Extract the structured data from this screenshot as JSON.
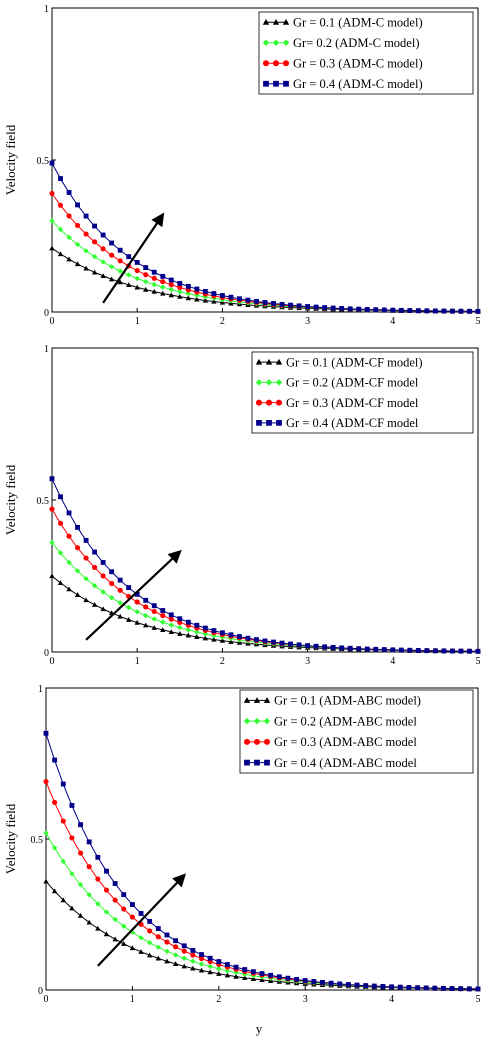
{
  "chart_data": [
    {
      "type": "line",
      "ylabel": "Velocity field",
      "xlim": [
        0,
        5
      ],
      "ylim": [
        0,
        1
      ],
      "xticks": [
        "0",
        "1",
        "2",
        "3",
        "4",
        "5"
      ],
      "yticks": [
        "0",
        "0.5",
        "1"
      ],
      "legend_position": "top-right",
      "arrow": {
        "from": [
          0.6,
          0.03
        ],
        "to": [
          1.3,
          0.32
        ]
      },
      "series": [
        {
          "name": "Gr = 0.1  (ADM-C model)",
          "color": "#000000",
          "marker": "triangle",
          "y0": 0.21,
          "decay": 0.95
        },
        {
          "name": "Gr= 0.2  (ADM-C model)",
          "color": "#33ff33",
          "marker": "diamond",
          "y0": 0.3,
          "decay": 1.0
        },
        {
          "name": "Gr = 0.3  (ADM-C model)",
          "color": "#ff0000",
          "marker": "circle",
          "y0": 0.39,
          "decay": 1.05
        },
        {
          "name": "Gr = 0.4  (ADM-C model)",
          "color": "#00008b",
          "marker": "square",
          "y0": 0.49,
          "decay": 1.1
        }
      ]
    },
    {
      "type": "line",
      "ylabel": "Velocity field",
      "xlim": [
        0,
        5
      ],
      "ylim": [
        0,
        1
      ],
      "xticks": [
        "0",
        "1",
        "2",
        "3",
        "4",
        "5"
      ],
      "yticks": [
        "0",
        "0.5",
        "1"
      ],
      "legend_position": "top-right",
      "arrow": {
        "from": [
          0.4,
          0.04
        ],
        "to": [
          1.5,
          0.33
        ]
      },
      "series": [
        {
          "name": "Gr = 0.1  (ADM-CF model)",
          "color": "#000000",
          "marker": "triangle",
          "y0": 0.25,
          "decay": 0.95
        },
        {
          "name": "Gr = 0.2  (ADM-CF model",
          "color": "#33ff33",
          "marker": "diamond",
          "y0": 0.36,
          "decay": 1.0
        },
        {
          "name": "Gr = 0.3  (ADM-CF model",
          "color": "#ff0000",
          "marker": "circle",
          "y0": 0.47,
          "decay": 1.05
        },
        {
          "name": "Gr = 0.4  (ADM-CF model",
          "color": "#00008b",
          "marker": "square",
          "y0": 0.57,
          "decay": 1.1
        }
      ]
    },
    {
      "type": "line",
      "ylabel": "Velocity field",
      "xlabel": "y",
      "xlim": [
        0,
        5
      ],
      "ylim": [
        0,
        1
      ],
      "xticks": [
        "0",
        "1",
        "2",
        "3",
        "4",
        "5"
      ],
      "yticks": [
        "0",
        "0.5",
        "1"
      ],
      "legend_position": "top-right",
      "arrow": {
        "from": [
          0.6,
          0.08
        ],
        "to": [
          1.6,
          0.38
        ]
      },
      "series": [
        {
          "name": "Gr = 0.1 (ADM-ABC model)",
          "color": "#000000",
          "marker": "triangle",
          "y0": 0.36,
          "decay": 0.95
        },
        {
          "name": "Gr = 0.2 (ADM-ABC model",
          "color": "#33ff33",
          "marker": "diamond",
          "y0": 0.52,
          "decay": 1.0
        },
        {
          "name": "Gr = 0.3 (ADM-ABC model",
          "color": "#ff0000",
          "marker": "circle",
          "y0": 0.69,
          "decay": 1.05
        },
        {
          "name": "Gr = 0.4 (ADM-ABC model",
          "color": "#00008b",
          "marker": "square",
          "y0": 0.85,
          "decay": 1.1
        }
      ]
    }
  ]
}
